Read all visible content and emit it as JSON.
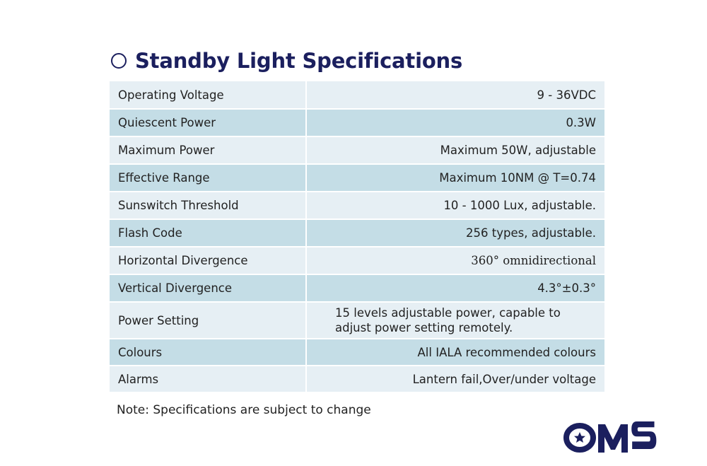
{
  "title": "Standby Light Specifications",
  "specs": [
    {
      "label": "Operating Voltage",
      "value": "9 - 36VDC"
    },
    {
      "label": "Quiescent Power",
      "value": "0.3W"
    },
    {
      "label": "Maximum Power",
      "value": "Maximum 50W, adjustable"
    },
    {
      "label": "Effective Range",
      "value": "Maximum 10NM @ T=0.74"
    },
    {
      "label": "Sunswitch Threshold",
      "value": "10 - 1000 Lux, adjustable."
    },
    {
      "label": "Flash Code",
      "value": "256 types, adjustable."
    },
    {
      "label": "Horizontal Divergence",
      "value": "360° omnidirectional"
    },
    {
      "label": "Vertical Divergence",
      "value": "4.3°±0.3°"
    },
    {
      "label": "Power Setting",
      "value": "15 levels adjustable power, capable to adjust power setting remotely."
    },
    {
      "label": "Colours",
      "value": "All IALA recommended colours"
    },
    {
      "label": "Alarms",
      "value": "Lantern fail,Over/under voltage"
    }
  ],
  "note": "Note: Specifications are subject to change",
  "logo": {
    "text": "OMS",
    "icon": "star-icon",
    "color": "#1b1f5e"
  },
  "colors": {
    "title": "#1b1f5e",
    "row_light": "#e6eff4",
    "row_dark": "#c4dde6"
  }
}
